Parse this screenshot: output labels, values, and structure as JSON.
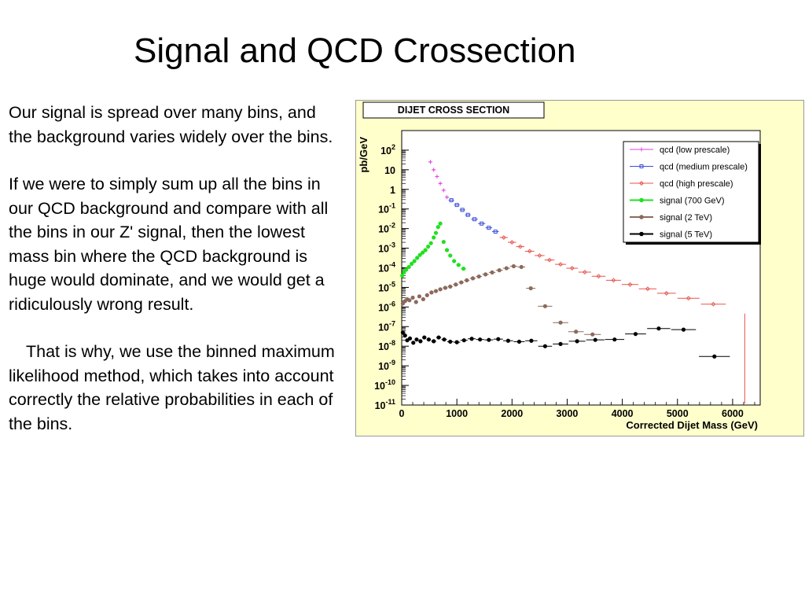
{
  "slide": {
    "title": "Signal and QCD Crossection",
    "paragraphs": [
      "Our signal is spread over many bins, and the background varies widely over the bins.",
      "If we were to simply sum up all the bins in our QCD background and compare with all the bins in our Z' signal, then the lowest mass bin where the QCD background is huge would dominate, and we would get a ridiculously wrong result.",
      "That is why, we use the binned maximum likelihood method, which takes into account correctly the relative probabilities in each of the bins."
    ]
  },
  "colors": {
    "figure_background": "#ffffcc",
    "qcd_low": "#e040e0",
    "qcd_medium": "#3a4fd8",
    "qcd_high": "#e8524a",
    "signal_700": "#20e020",
    "signal_2tev": "#8b6a5c",
    "signal_5tev": "#000000"
  },
  "chart_data": {
    "type": "scatter",
    "title": "DIJET CROSS SECTION",
    "xlabel": "Corrected Dijet Mass (GeV)",
    "ylabel": "pb/GeV",
    "xlim": [
      0,
      6500
    ],
    "ylim": [
      1e-11,
      1000
    ],
    "yscale": "log",
    "x_ticks": [
      "0",
      "1000",
      "2000",
      "3000",
      "4000",
      "5000",
      "6000"
    ],
    "y_ticks": [
      {
        "base": "10",
        "exp": "2"
      },
      {
        "base": "10",
        "exp": ""
      },
      {
        "base": "1",
        "exp": ""
      },
      {
        "base": "10",
        "exp": "-1"
      },
      {
        "base": "10",
        "exp": "-2"
      },
      {
        "base": "10",
        "exp": "-3"
      },
      {
        "base": "10",
        "exp": "-4"
      },
      {
        "base": "10",
        "exp": "-5"
      },
      {
        "base": "10",
        "exp": "-6"
      },
      {
        "base": "10",
        "exp": "-7"
      },
      {
        "base": "10",
        "exp": "-8"
      },
      {
        "base": "10",
        "exp": "-9"
      },
      {
        "base": "10",
        "exp": "-10"
      },
      {
        "base": "10",
        "exp": "-11"
      }
    ],
    "legend_position": "top-right",
    "series": [
      {
        "name": "qcd (low prescale)",
        "color": "#e040e0",
        "marker": "plus",
        "x": [
          520,
          580,
          640,
          700,
          760,
          820
        ],
        "y": [
          25,
          10,
          4.5,
          2,
          0.9,
          0.4
        ]
      },
      {
        "name": "qcd (medium prescale)",
        "color": "#3a4fd8",
        "marker": "square",
        "x": [
          900,
          1000,
          1100,
          1200,
          1320,
          1450,
          1580,
          1700
        ],
        "y": [
          0.28,
          0.16,
          0.09,
          0.05,
          0.03,
          0.018,
          0.011,
          0.007
        ]
      },
      {
        "name": "qcd (high prescale)",
        "color": "#e8524a",
        "marker": "diamond",
        "x": [
          1850,
          2000,
          2150,
          2320,
          2500,
          2680,
          2880,
          3090,
          3320,
          3570,
          3840,
          4140,
          4460,
          4800,
          5200,
          5650
        ],
        "y": [
          0.0035,
          0.002,
          0.0012,
          0.0007,
          0.00042,
          0.00025,
          0.00015,
          9.5e-05,
          6e-05,
          3.7e-05,
          2.3e-05,
          1.4e-05,
          8.5e-06,
          5e-06,
          2.8e-06,
          1.4e-06
        ]
      },
      {
        "name": "signal (700 GeV)",
        "color": "#20e020",
        "marker": "circle",
        "x": [
          10,
          40,
          80,
          130,
          180,
          230,
          280,
          330,
          380,
          430,
          480,
          530,
          580,
          620,
          660,
          700,
          760,
          820,
          880,
          950,
          1030,
          1120
        ],
        "y": [
          4e-05,
          6e-05,
          8e-05,
          0.00011,
          0.00016,
          0.00022,
          0.00032,
          0.00045,
          0.0006,
          0.0008,
          0.0012,
          0.0018,
          0.0035,
          0.006,
          0.012,
          0.018,
          0.0021,
          0.0008,
          0.00042,
          0.00022,
          0.00014,
          9e-05
        ]
      },
      {
        "name": "signal (2 TeV)",
        "color": "#8b6a5c",
        "marker": "circle",
        "x": [
          20,
          60,
          100,
          140,
          200,
          260,
          320,
          390,
          460,
          540,
          620,
          700,
          790,
          880,
          980,
          1080,
          1180,
          1290,
          1400,
          1520,
          1640,
          1770,
          1900,
          2030,
          2170,
          2340,
          2600,
          2880,
          3160,
          3460
        ],
        "y": [
          1.5e-06,
          2e-06,
          2.5e-06,
          2.2e-06,
          3e-06,
          1.8e-06,
          3.5e-06,
          2.5e-06,
          4e-06,
          5.5e-06,
          6.5e-06,
          8e-06,
          9.5e-06,
          1.1e-05,
          1.4e-05,
          1.8e-05,
          2.3e-05,
          2.9e-05,
          3.6e-05,
          4.6e-05,
          5.8e-05,
          7.5e-05,
          9.5e-05,
          0.00012,
          0.00011,
          9e-06,
          1.1e-06,
          1.6e-07,
          5.5e-08,
          4e-08
        ]
      },
      {
        "name": "signal (5 TeV)",
        "color": "#000000",
        "marker": "circle",
        "x": [
          20,
          60,
          100,
          150,
          210,
          270,
          340,
          410,
          490,
          580,
          670,
          770,
          880,
          1000,
          1130,
          1270,
          1420,
          1580,
          1750,
          1930,
          2130,
          2350,
          2600,
          2880,
          3180,
          3510,
          3860,
          4240,
          4660,
          5110,
          5670
        ],
        "y": [
          5e-08,
          3.5e-08,
          2e-08,
          2.5e-08,
          1.5e-08,
          2.2e-08,
          1.8e-08,
          2.8e-08,
          2.2e-08,
          1.8e-08,
          2.8e-08,
          2.2e-08,
          1.7e-08,
          1.6e-08,
          2e-08,
          2.4e-08,
          2.2e-08,
          2.1e-08,
          2.3e-08,
          1.9e-08,
          1.7e-08,
          1.9e-08,
          1e-08,
          1.3e-08,
          1.8e-08,
          2.1e-08,
          2.2e-08,
          4.2e-08,
          8e-08,
          7e-08,
          3e-09
        ]
      }
    ]
  }
}
